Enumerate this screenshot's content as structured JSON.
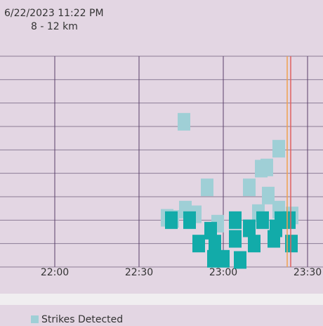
{
  "chart_data": {
    "type": "scatter",
    "title": "6/22/2023 11:22 PM",
    "subtitle": "8 - 12 km",
    "x": [
      1366,
      1399.75,
      1395.5,
      1393.5,
      1374.25,
      1389.25,
      1396,
      1360,
      1366.5,
      1370,
      1378,
      1392.5,
      1399.75,
      1404.5,
      1362,
      1361.5,
      1368,
      1375.5,
      1371.25,
      1377,
      1384.25,
      1384.25,
      1389.25,
      1391,
      1394,
      1398,
      1400.5,
      1403.5,
      1404.25,
      1380,
      1386,
      1376.5,
      1398.75
    ],
    "series": [
      {
        "name": "Strikes Detected",
        "color": "#9fcfd6",
        "values": [
          6.2,
          5.05,
          4.25,
          4.2,
          3.4,
          3.4,
          3.05,
          2.1,
          2.45,
          2.25,
          1.85,
          2.3,
          2.45,
          2.2,
          2.05,
          2.0,
          2.0,
          1.55,
          1.0,
          1.0,
          2.0,
          1.2,
          1.65,
          1.0,
          2.0,
          1.2,
          2.0,
          2.0,
          1.0,
          0.35,
          0.3,
          0.35,
          1.65
        ],
        "point_colors": [
          "#9fcfd6",
          "#9fcfd6",
          "#9fcfd6",
          "#9fcfd6",
          "#9fcfd6",
          "#9fcfd6",
          "#9fcfd6",
          "#9fcfd6",
          "#9fcfd6",
          "#9fcfd6",
          "#9fcfd6",
          "#9fcfd6",
          "#9fcfd6",
          "#9fcfd6",
          "#9fcfd6",
          "#12aba9",
          "#12aba9",
          "#12aba9",
          "#12aba9",
          "#12aba9",
          "#12aba9",
          "#12aba9",
          "#12aba9",
          "#12aba9",
          "#12aba9",
          "#12aba9",
          "#12aba9",
          "#12aba9",
          "#12aba9",
          "#12aba9",
          "#12aba9",
          "#12aba9",
          "#12aba9"
        ]
      }
    ],
    "xlim": [
      1300.5,
      1415.5
    ],
    "xticks": [
      {
        "value": 1320,
        "label": "22:00"
      },
      {
        "value": 1350,
        "label": "22:30"
      },
      {
        "value": 1380,
        "label": "23:00"
      },
      {
        "value": 1410,
        "label": "23:30"
      }
    ],
    "ylim": [
      0,
      9
    ],
    "yticks": [
      0,
      1,
      2,
      3,
      4,
      5,
      6,
      7,
      8,
      9
    ],
    "grid": true,
    "markers": [
      {
        "x": 1402.75,
        "color": "#f0a050"
      },
      {
        "x": 1404,
        "color": "#e06060"
      }
    ]
  }
}
